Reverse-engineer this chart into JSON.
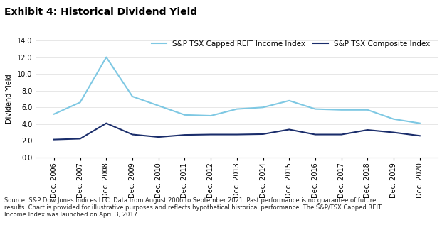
{
  "title": "Exhibit 4: Historical Dividend Yield",
  "ylabel": "Dividend Yield",
  "ylim": [
    0.0,
    14.0
  ],
  "yticks": [
    0.0,
    2.0,
    4.0,
    6.0,
    8.0,
    10.0,
    12.0,
    14.0
  ],
  "x_labels": [
    "Dec. 2006",
    "Dec. 2007",
    "Dec. 2008",
    "Dec. 2009",
    "Dec. 2010",
    "Dec. 2011",
    "Dec. 2012",
    "Dec. 2013",
    "Dec. 2014",
    "Dec. 2015",
    "Dec. 2016",
    "Dec. 2017",
    "Dec. 2018",
    "Dec. 2019",
    "Dec. 2020"
  ],
  "reit_values": [
    5.2,
    6.6,
    12.0,
    7.3,
    6.2,
    5.1,
    5.0,
    5.8,
    6.0,
    6.8,
    5.8,
    5.7,
    5.7,
    4.6,
    4.1
  ],
  "composite_values": [
    2.15,
    2.25,
    4.1,
    2.75,
    2.45,
    2.7,
    2.75,
    2.75,
    2.8,
    3.35,
    2.75,
    2.75,
    3.3,
    3.0,
    2.6
  ],
  "reit_color": "#7ec8e3",
  "composite_color": "#1a2d6b",
  "reit_label": "S&P TSX Capped REIT Income Index",
  "composite_label": "S&P TSX Composite Index",
  "source_text": "Source: S&P Dow Jones Indices LLC. Data from August 2006 to September 2021. Past performance is no guarantee of future\nresults. Chart is provided for illustrative purposes and reflects hypothetical historical performance. The S&P/TSX Capped REIT\nIncome Index was launched on April 3, 2017.",
  "background_color": "#ffffff",
  "title_fontsize": 10,
  "axis_fontsize": 7.0,
  "legend_fontsize": 7.5,
  "source_fontsize": 6.0
}
